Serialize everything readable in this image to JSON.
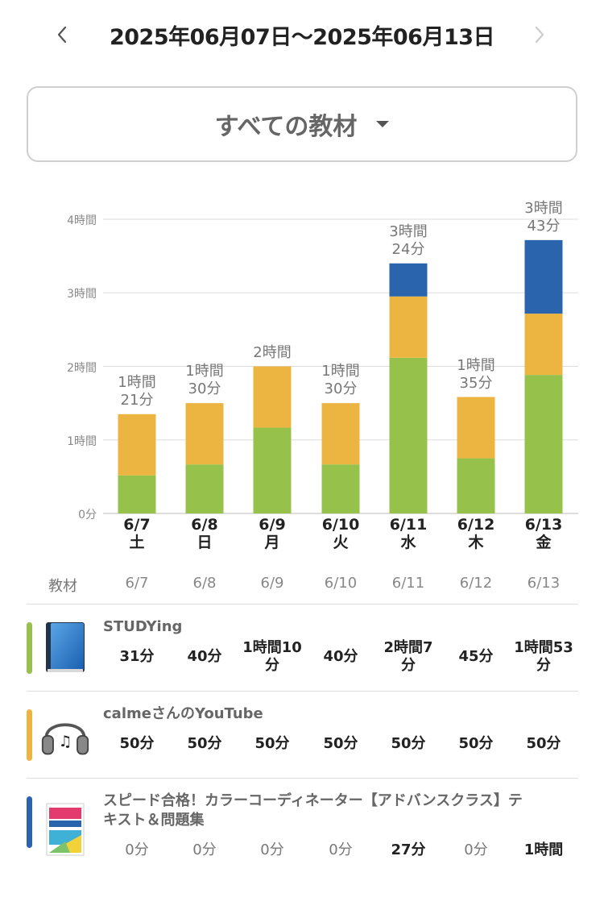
{
  "header": {
    "date_range": "2025年06月07日～2025年06月13日",
    "prev_icon": "chevron-left-icon",
    "next_icon": "chevron-right-icon"
  },
  "filter": {
    "selected": "すべての教材",
    "caret_icon": "caret-down-icon"
  },
  "colors": {
    "studying": "#96c14a",
    "calme": "#ecb441",
    "speed": "#2a64ad",
    "grid": "#dddddd",
    "axis": "#bbbbbb"
  },
  "chart_data": {
    "type": "bar",
    "stacked": true,
    "categories": [
      "6/7",
      "6/8",
      "6/9",
      "6/10",
      "6/11",
      "6/12",
      "6/13"
    ],
    "weekdays": [
      "土",
      "日",
      "月",
      "火",
      "水",
      "木",
      "金"
    ],
    "y_unit": "minutes",
    "ylim": [
      0,
      240
    ],
    "y_ticks": [
      {
        "value": 0,
        "label": "0分"
      },
      {
        "value": 60,
        "label": "1時間"
      },
      {
        "value": 120,
        "label": "2時間"
      },
      {
        "value": 180,
        "label": "3時間"
      },
      {
        "value": 240,
        "label": "4時間"
      }
    ],
    "series": [
      {
        "name": "STUDYing",
        "color_key": "studying",
        "values": [
          31,
          40,
          70,
          40,
          127,
          45,
          113
        ]
      },
      {
        "name": "calmeさんのYouTube",
        "color_key": "calme",
        "values": [
          50,
          50,
          50,
          50,
          50,
          50,
          50
        ]
      },
      {
        "name": "スピード合格！カラーコーディネーター【アドバンスクラス】テキスト＆問題集",
        "color_key": "speed",
        "values": [
          0,
          0,
          0,
          0,
          27,
          0,
          60
        ]
      }
    ],
    "totals": [
      81,
      90,
      120,
      90,
      204,
      95,
      223
    ],
    "total_labels": [
      "1時間\n21分",
      "1時間\n30分",
      "2時間",
      "1時間\n30分",
      "3時間\n24分",
      "1時間\n35分",
      "3時間\n43分"
    ],
    "grid": true
  },
  "table": {
    "header_label": "教材",
    "dates": [
      "6/7",
      "6/8",
      "6/9",
      "6/10",
      "6/11",
      "6/12",
      "6/13"
    ],
    "rows": [
      {
        "name": "STUDYing",
        "icon": "book-icon",
        "color_key": "studying",
        "values": [
          "31分",
          "40分",
          "1時間10\n分",
          "40分",
          "2時間7\n分",
          "45分",
          "1時間53\n分"
        ],
        "bold": [
          true,
          true,
          true,
          true,
          true,
          true,
          true
        ]
      },
      {
        "name": "calmeさんのYouTube",
        "icon": "headphones-icon",
        "color_key": "calme",
        "values": [
          "50分",
          "50分",
          "50分",
          "50分",
          "50分",
          "50分",
          "50分"
        ],
        "bold": [
          true,
          true,
          true,
          true,
          true,
          true,
          true
        ]
      },
      {
        "name": "スピード合格！カラーコーディネーター【アドバンスクラス】テ\nキスト＆問題集",
        "icon": "textbook-cover-icon",
        "color_key": "speed",
        "values": [
          "0分",
          "0分",
          "0分",
          "0分",
          "27分",
          "0分",
          "1時間"
        ],
        "bold": [
          false,
          false,
          false,
          false,
          true,
          false,
          true
        ]
      }
    ]
  }
}
